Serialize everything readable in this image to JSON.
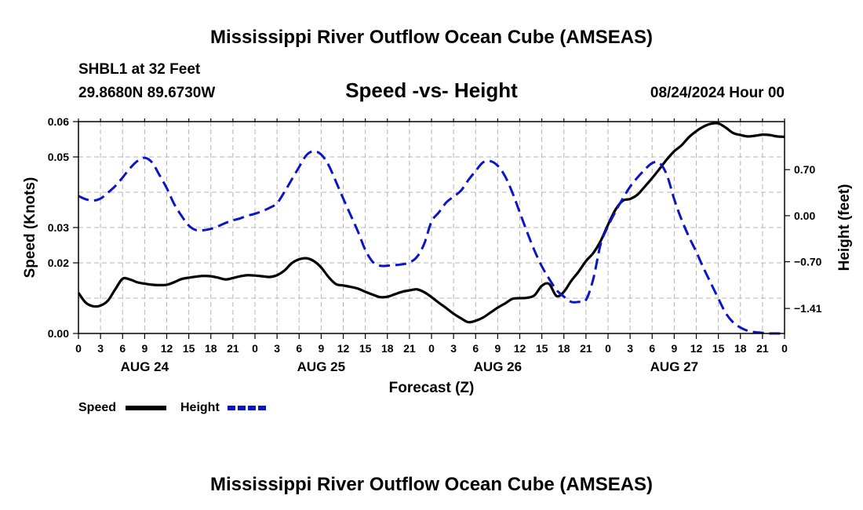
{
  "header": {
    "title": "Mississippi River Outflow Ocean Cube (AMSEAS)",
    "footer_title": "Mississippi River Outflow Ocean Cube (AMSEAS)",
    "station": "SHBL1 at 32 Feet",
    "coordinates": "29.8680N  89.6730W",
    "chart_subtitle": "Speed -vs- Height",
    "datetime": "08/24/2024 Hour 00"
  },
  "colors": {
    "speed": "#000000",
    "height": "#0a14c8"
  },
  "chart_data": {
    "type": "line",
    "title": "Speed -vs- Height",
    "xlabel": "Forecast (Z)",
    "ylabel": "Speed (Knots)",
    "y2label": "Height (feet)",
    "x_range": [
      0,
      96
    ],
    "x_ticks": [
      0,
      3,
      6,
      9,
      12,
      15,
      18,
      21,
      24,
      27,
      30,
      33,
      36,
      39,
      42,
      45,
      48,
      51,
      54,
      57,
      60,
      63,
      66,
      69,
      72,
      75,
      78,
      81,
      84,
      87,
      90,
      93,
      96
    ],
    "x_tick_labels": [
      "0",
      "3",
      "6",
      "9",
      "12",
      "15",
      "18",
      "21",
      "0",
      "3",
      "6",
      "9",
      "12",
      "15",
      "18",
      "21",
      "0",
      "3",
      "6",
      "9",
      "12",
      "15",
      "18",
      "21",
      "0",
      "3",
      "6",
      "9",
      "12",
      "15",
      "18",
      "21",
      "0"
    ],
    "date_labels": [
      {
        "hour": 9,
        "label": "AUG 24"
      },
      {
        "hour": 33,
        "label": "AUG 25"
      },
      {
        "hour": 57,
        "label": "AUG 26"
      },
      {
        "hour": 81,
        "label": "AUG 27"
      }
    ],
    "y_left": {
      "range": [
        0,
        0.06
      ],
      "ticks": [
        0.0,
        0.02,
        0.03,
        0.05,
        0.06
      ],
      "tick_labels": [
        "0.00",
        "0.02",
        "0.03",
        "0.05",
        "0.06"
      ]
    },
    "y_right": {
      "range": [
        -1.79,
        1.43
      ],
      "ticks": [
        0.7,
        0.0,
        -0.7,
        -1.41
      ],
      "tick_labels": [
        "0.70",
        "0.00",
        "−0.70",
        "−1.41"
      ]
    },
    "grid": true,
    "series": [
      {
        "name": "Speed",
        "axis": "left",
        "style": "solid",
        "x": [
          0,
          1,
          2,
          3,
          4,
          5,
          6,
          7,
          8,
          9,
          10,
          11,
          12,
          13,
          14,
          15,
          16,
          17,
          18,
          19,
          20,
          21,
          22,
          23,
          24,
          25,
          26,
          27,
          28,
          29,
          30,
          31,
          32,
          33,
          34,
          35,
          36,
          37,
          38,
          39,
          40,
          41,
          42,
          43,
          44,
          45,
          46,
          47,
          48,
          49,
          50,
          51,
          52,
          53,
          54,
          55,
          56,
          57,
          58,
          59,
          60,
          61,
          62,
          63,
          64,
          65,
          66,
          67,
          68,
          69,
          70,
          71,
          72,
          73,
          74,
          75,
          76,
          77,
          78,
          79,
          80,
          81,
          82,
          83,
          84,
          85,
          86,
          87,
          88,
          89,
          90,
          91,
          92,
          93,
          94,
          95,
          96
        ],
        "values": [
          0.0115,
          0.0087,
          0.0077,
          0.0079,
          0.0093,
          0.0125,
          0.0155,
          0.0153,
          0.0145,
          0.0141,
          0.0138,
          0.0137,
          0.0138,
          0.0145,
          0.0154,
          0.0158,
          0.0161,
          0.0163,
          0.0162,
          0.0158,
          0.0153,
          0.0157,
          0.0162,
          0.0165,
          0.0164,
          0.0162,
          0.016,
          0.0165,
          0.0178,
          0.0199,
          0.021,
          0.0213,
          0.0205,
          0.0187,
          0.016,
          0.014,
          0.0136,
          0.0132,
          0.0127,
          0.0118,
          0.011,
          0.0103,
          0.0104,
          0.0111,
          0.0118,
          0.0122,
          0.0125,
          0.0117,
          0.0103,
          0.0087,
          0.0072,
          0.0056,
          0.0043,
          0.0032,
          0.0036,
          0.0045,
          0.0059,
          0.0073,
          0.0085,
          0.0098,
          0.01,
          0.0101,
          0.0108,
          0.0135,
          0.014,
          0.0106,
          0.0118,
          0.0149,
          0.0175,
          0.0205,
          0.0228,
          0.0262,
          0.0308,
          0.035,
          0.0376,
          0.0381,
          0.0393,
          0.0416,
          0.044,
          0.0466,
          0.0493,
          0.0516,
          0.0533,
          0.0556,
          0.0573,
          0.0586,
          0.0594,
          0.0595,
          0.0583,
          0.0568,
          0.0562,
          0.0558,
          0.056,
          0.0563,
          0.0562,
          0.0558,
          0.0557
        ]
      },
      {
        "name": "Height",
        "axis": "right",
        "style": "dashed",
        "x": [
          0,
          1,
          2,
          3,
          4,
          5,
          6,
          7,
          8,
          9,
          10,
          11,
          12,
          13,
          14,
          15,
          16,
          17,
          18,
          19,
          20,
          21,
          22,
          23,
          24,
          25,
          26,
          27,
          28,
          29,
          30,
          31,
          32,
          33,
          34,
          35,
          36,
          37,
          38,
          39,
          40,
          41,
          42,
          43,
          44,
          45,
          46,
          47,
          48,
          49,
          50,
          51,
          52,
          53,
          54,
          55,
          56,
          57,
          58,
          59,
          60,
          61,
          62,
          63,
          64,
          65,
          66,
          67,
          68,
          69,
          70,
          71,
          72,
          73,
          74,
          75,
          76,
          77,
          78,
          79,
          80,
          81,
          82,
          83,
          84,
          85,
          86,
          87,
          88,
          89,
          90,
          91,
          92,
          93,
          94,
          95,
          96
        ],
        "values": [
          0.3,
          0.25,
          0.23,
          0.26,
          0.35,
          0.45,
          0.58,
          0.72,
          0.83,
          0.88,
          0.81,
          0.62,
          0.42,
          0.18,
          0.0,
          -0.15,
          -0.22,
          -0.22,
          -0.2,
          -0.16,
          -0.11,
          -0.07,
          -0.04,
          0.0,
          0.03,
          0.07,
          0.12,
          0.19,
          0.36,
          0.55,
          0.74,
          0.92,
          0.98,
          0.93,
          0.77,
          0.52,
          0.26,
          0.01,
          -0.24,
          -0.52,
          -0.7,
          -0.76,
          -0.76,
          -0.75,
          -0.74,
          -0.71,
          -0.63,
          -0.43,
          -0.09,
          0.05,
          0.2,
          0.29,
          0.38,
          0.54,
          0.68,
          0.81,
          0.83,
          0.76,
          0.6,
          0.35,
          0.05,
          -0.25,
          -0.53,
          -0.77,
          -0.96,
          -1.13,
          -1.23,
          -1.31,
          -1.31,
          -1.28,
          -0.96,
          -0.43,
          -0.16,
          0.06,
          0.26,
          0.44,
          0.58,
          0.7,
          0.8,
          0.8,
          0.62,
          0.25,
          -0.06,
          -0.32,
          -0.55,
          -0.8,
          -1.03,
          -1.26,
          -1.48,
          -1.62,
          -1.7,
          -1.75,
          -1.77,
          -1.78,
          -1.79,
          -1.79,
          -1.79
        ]
      }
    ],
    "legend": [
      {
        "name": "Speed",
        "style": "solid"
      },
      {
        "name": "Height",
        "style": "dashed"
      }
    ]
  }
}
